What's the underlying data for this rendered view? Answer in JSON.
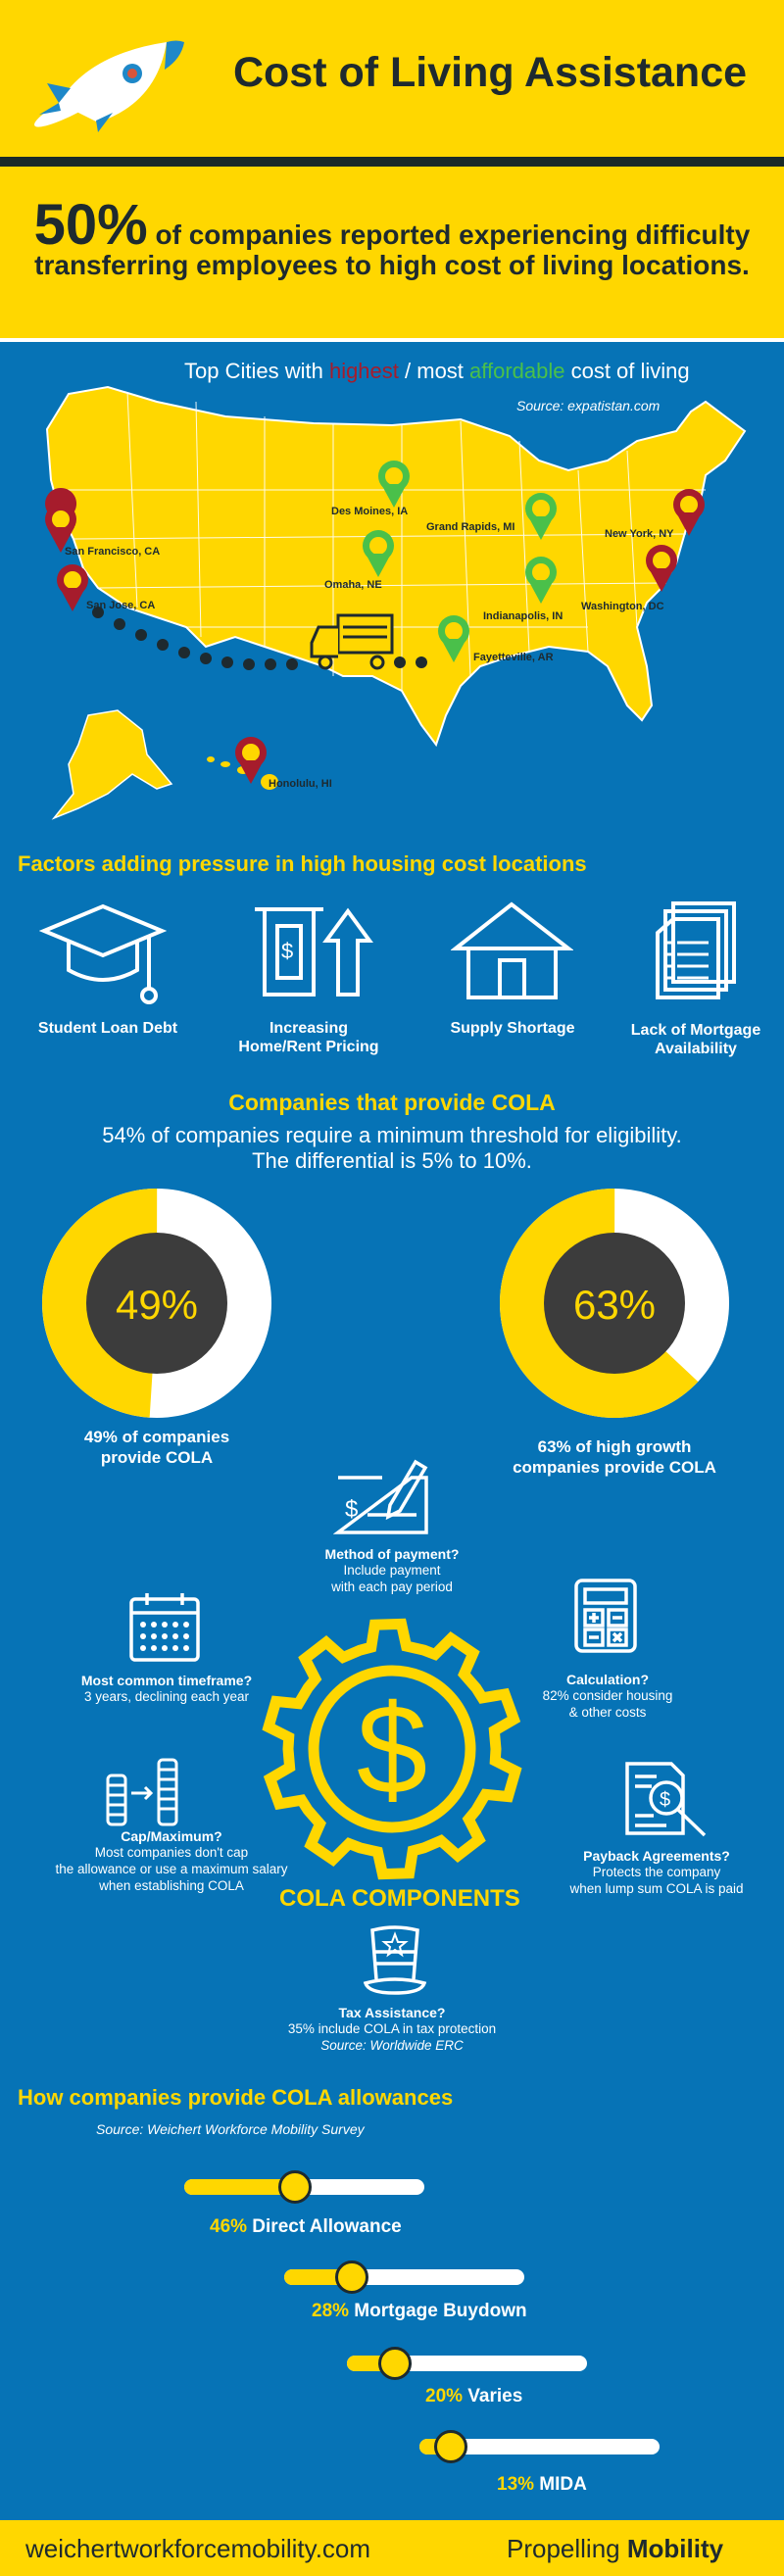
{
  "header": {
    "title": "Cost of Living Assistance",
    "stat_big": "50%",
    "stat_text1": " of companies reported experiencing difficulty",
    "stat_text2": "transferring employees to high cost of living locations."
  },
  "map": {
    "title_pre": "Top Cities with ",
    "title_highest": "highest",
    "title_sep": " / most ",
    "title_affordable": "affordable",
    "title_post": " cost of living",
    "source": "Source: expatistan.com",
    "highest_cities": [
      "San Francisco, CA",
      "San Jose, CA",
      "New York, NY",
      "Washington, DC",
      "Honolulu, HI"
    ],
    "affordable_cities": [
      "Des Moines, IA",
      "Grand Rapids, MI",
      "Omaha, NE",
      "Indianapolis, IN",
      "Fayetteville, AR"
    ],
    "colors": {
      "highest": "#a61c2c",
      "affordable": "#4ac04a"
    }
  },
  "factors": {
    "title": "Factors adding pressure in high housing cost locations",
    "items": [
      {
        "label1": "Student Loan Debt",
        "label2": "",
        "icon": "graduation-cap-icon"
      },
      {
        "label1": "Increasing",
        "label2": "Home/Rent Pricing",
        "icon": "money-up-arrow-icon"
      },
      {
        "label1": "Supply Shortage",
        "label2": "",
        "icon": "house-icon"
      },
      {
        "label1": "Lack of Mortgage",
        "label2": "Availability",
        "icon": "documents-icon"
      }
    ]
  },
  "cola": {
    "title": "Companies that provide COLA",
    "sub1": "54% of companies require a minimum threshold for eligibility.",
    "sub2": "The differential is 5% to 10%.",
    "donuts": [
      {
        "value": 49,
        "display": "49%",
        "label1": "49% of companies",
        "label2": "provide COLA"
      },
      {
        "value": 63,
        "display": "63%",
        "label1": "63% of high growth",
        "label2": "companies provide COLA"
      }
    ]
  },
  "components": {
    "heading": "COLA COMPONENTS",
    "method": {
      "title": "Method of payment?",
      "desc1": "Include payment",
      "desc2": "with each pay period",
      "icon": "check-pen-icon"
    },
    "timeframe": {
      "title": "Most common timeframe?",
      "desc1": "3 years, declining each year",
      "icon": "calendar-icon"
    },
    "calculation": {
      "title": "Calculation?",
      "desc1": "82% consider housing",
      "desc2": "& other costs",
      "icon": "calculator-icon"
    },
    "cap": {
      "title": "Cap/Maximum?",
      "desc1": "Most companies don't cap",
      "desc2": "the allowance or use a maximum salary",
      "desc3": "when establishing COLA",
      "icon": "coin-stacks-icon"
    },
    "payback": {
      "title": "Payback Agreements?",
      "desc1": "Protects the company",
      "desc2": "when lump sum COLA is paid",
      "icon": "document-magnifier-icon"
    },
    "tax": {
      "title": "Tax Assistance?",
      "desc1": "35% include COLA in tax protection",
      "desc2": "Source:  Worldwide ERC",
      "icon": "uncle-sam-hat-icon"
    }
  },
  "allowances": {
    "title": "How companies provide COLA allowances",
    "source": "Source: Weichert Workforce Mobility Survey",
    "items": [
      {
        "pct": "46%",
        "label": " Direct Allowance",
        "value": 46
      },
      {
        "pct": "28%",
        "label": " Mortgage Buydown",
        "value": 28
      },
      {
        "pct": "20%",
        "label": " Varies",
        "value": 20
      },
      {
        "pct": "13%",
        "label": " MIDA",
        "value": 13
      }
    ]
  },
  "footer": {
    "url": "weichertworkforcemobility.com",
    "tag_light": "Propelling ",
    "tag_bold": "Mobility"
  }
}
